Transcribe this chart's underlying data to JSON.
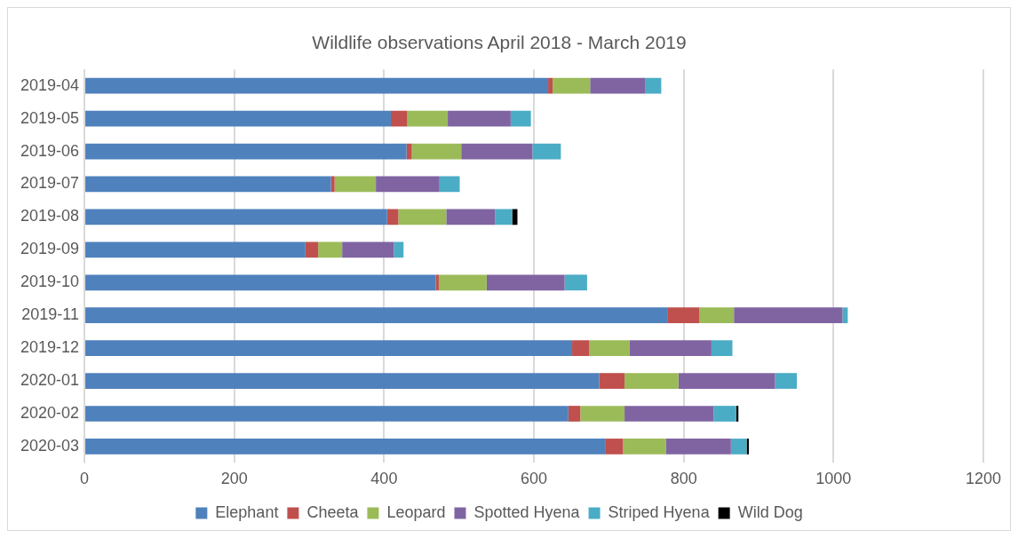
{
  "chart_data": {
    "type": "bar",
    "orientation": "horizontal",
    "stacked": true,
    "title": "Wildlife observations April 2018 - March 2019",
    "categories": [
      "2019-04",
      "2019-05",
      "2019-06",
      "2019-07",
      "2019-08",
      "2019-09",
      "2019-10",
      "2019-11",
      "2019-12",
      "2020-01",
      "2020-02",
      "2020-03"
    ],
    "series": [
      {
        "name": "Elephant",
        "color": "#4f81bd",
        "values": [
          619,
          409,
          430,
          329,
          404,
          295,
          469,
          778,
          651,
          687,
          646,
          695
        ]
      },
      {
        "name": "Cheeta",
        "color": "#c0504d",
        "values": [
          6,
          22,
          7,
          5,
          15,
          17,
          4,
          43,
          23,
          34,
          16,
          24
        ]
      },
      {
        "name": "Leopard",
        "color": "#9bbb59",
        "values": [
          50,
          54,
          66,
          55,
          64,
          32,
          64,
          46,
          54,
          72,
          59,
          57
        ]
      },
      {
        "name": "Spotted Hyena",
        "color": "#8064a2",
        "values": [
          74,
          84,
          95,
          85,
          65,
          69,
          104,
          145,
          109,
          129,
          119,
          87
        ]
      },
      {
        "name": "Striped Hyena",
        "color": "#4bacc6",
        "values": [
          21,
          27,
          38,
          27,
          23,
          13,
          30,
          7,
          28,
          29,
          30,
          21
        ]
      },
      {
        "name": "Wild Dog",
        "color": "#000000",
        "values": [
          0,
          0,
          0,
          0,
          7,
          0,
          0,
          0,
          0,
          0,
          3,
          3
        ]
      }
    ],
    "xlim": [
      0,
      1200
    ],
    "xticks": [
      0,
      200,
      400,
      600,
      800,
      1000,
      1200
    ],
    "grid": "x",
    "legend": "bottom"
  }
}
